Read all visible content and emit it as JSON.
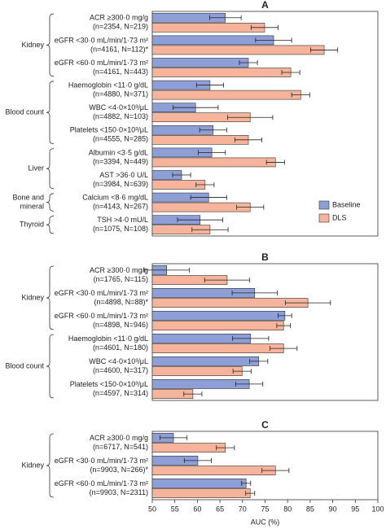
{
  "chart_data": [
    {
      "type": "bar",
      "orientation": "horizontal",
      "title": "A",
      "xlim": [
        50,
        100
      ],
      "legend": "lower right",
      "groups": [
        {
          "name": [
            "Kidney"
          ],
          "categories": [
            [
              "ACR ≥300·0 mg/g",
              "(n=2354, N=219)"
            ],
            [
              "eGFR <30·0 mL/min/1·73 m²",
              "(n=4161, N=112)*"
            ],
            [
              "eGFR <60·0 mL/min/1·73 m²",
              "(n=4161, N=443)"
            ]
          ]
        },
        {
          "name": [
            "Blood count"
          ],
          "categories": [
            [
              "Haemoglobin <11·0 g/dL",
              "(n=4880, N=371)"
            ],
            [
              "WBC <4·0×10³/μL",
              "(n=4882, N=103)"
            ],
            [
              "Platelets <150·0×10³/μL",
              "(n=4555, N=285)"
            ]
          ]
        },
        {
          "name": [
            "Liver"
          ],
          "categories": [
            [
              "Albumin <3·5 g/dL",
              "(n=3394, N=449)"
            ],
            [
              "AST >36·0 U/L",
              "(n=3984, N=639)"
            ]
          ]
        },
        {
          "name": [
            "Bone and",
            "mineral"
          ],
          "categories": [
            [
              "Calcium <8·6 mg/dL",
              "(n=4143, N=267)"
            ]
          ]
        },
        {
          "name": [
            "Thyroid"
          ],
          "categories": [
            [
              "TSH >4·0 mU/L",
              "(n=1075, N=108)"
            ]
          ]
        }
      ],
      "series": [
        {
          "name": "Baseline",
          "color": "#8e9ed6",
          "values": [
            66.2,
            76.9,
            71.3,
            62.8,
            59.6,
            63.5,
            63.2,
            56.5,
            62.5,
            60.6
          ],
          "errors": [
            3.5,
            4,
            2,
            3,
            5,
            3,
            3,
            2,
            4,
            5
          ]
        },
        {
          "name": "DLS",
          "color": "#f5b49b",
          "values": [
            74.9,
            88.1,
            80.7,
            82.9,
            71.7,
            71.3,
            77.3,
            61.7,
            71.7,
            62.8
          ],
          "errors": [
            3,
            3,
            2,
            2,
            5,
            3,
            2,
            2,
            3,
            4
          ]
        }
      ]
    },
    {
      "type": "bar",
      "orientation": "horizontal",
      "title": "B",
      "xlim": [
        50,
        100
      ],
      "groups": [
        {
          "name": [
            "Kidney"
          ],
          "categories": [
            [
              "ACR ≥300·0 mg/g",
              "(n=1765, N=115)"
            ],
            [
              "eGFR <30·0 mL/min/1·73 m²",
              "(n=4898, N=88)*"
            ],
            [
              "eGFR <60·0 mL/min/1·73 m²",
              "(n=4898, N=946)"
            ]
          ]
        },
        {
          "name": [
            "Blood count"
          ],
          "categories": [
            [
              "Haemoglobin <11·0 g/dL",
              "(n=4601, N=180)"
            ],
            [
              "WBC <4·0×10³/μL",
              "(n=4600, N=317)"
            ],
            [
              "Platelets <150·0×10³/μL",
              "(n=4597, N=314)"
            ]
          ]
        }
      ],
      "series": [
        {
          "name": "Baseline",
          "color": "#8e9ed6",
          "values": [
            53.2,
            72.7,
            79.4,
            71.8,
            73.6,
            71.5
          ],
          "errors": [
            5,
            5,
            1.5,
            4,
            2,
            3
          ]
        },
        {
          "name": "DLS",
          "color": "#f5b49b",
          "values": [
            66.6,
            84.5,
            79.1,
            79.1,
            69.9,
            59.0
          ],
          "errors": [
            5,
            5,
            1.5,
            3,
            2,
            2
          ]
        }
      ]
    },
    {
      "type": "bar",
      "orientation": "horizontal",
      "title": "C",
      "xlim": [
        50,
        100
      ],
      "xticks": [
        50,
        55,
        60,
        65,
        70,
        75,
        80,
        85,
        90,
        95,
        100
      ],
      "xlabel": "AUC (%)",
      "groups": [
        {
          "name": [
            "Kidney"
          ],
          "categories": [
            [
              "ACR ≥300·0 mg/g",
              "(n=6717, N=541)"
            ],
            [
              "eGFR <30·0 mL/min/1·73 m²",
              "(n=9903, N=266)*"
            ],
            [
              "eGFR <60·0 mL/min/1·73 m²",
              "(n=9903, N=2311)"
            ]
          ]
        }
      ],
      "series": [
        {
          "name": "Baseline",
          "color": "#8e9ed6",
          "values": [
            54.7,
            60.1,
            70.8
          ],
          "errors": [
            3,
            3,
            1
          ]
        },
        {
          "name": "DLS",
          "color": "#f5b49b",
          "values": [
            66.2,
            77.3,
            71.7
          ],
          "errors": [
            2,
            3,
            1
          ]
        }
      ]
    }
  ]
}
